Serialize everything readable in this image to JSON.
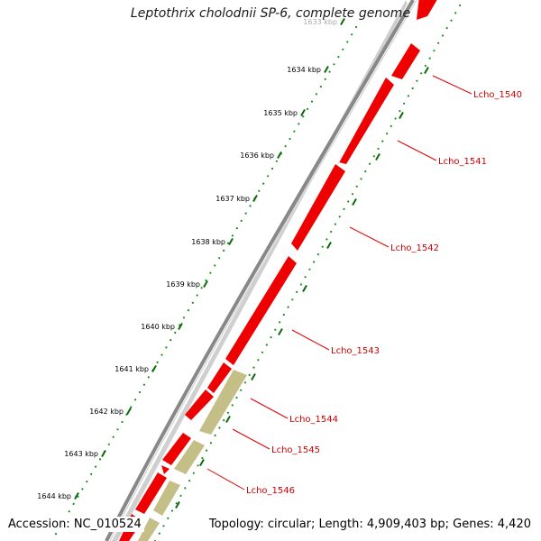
{
  "title": "Leptothrix cholodnii SP-6, complete genome",
  "footer": {
    "accession": "Accession: NC_010524",
    "summary": "Topology: circular; Length: 4,909,403 bp; Genes: 4,420"
  },
  "colors": {
    "backbone": "#8a8a8a",
    "gene_forward": "#ee0000",
    "gene_other": "#c4bf86",
    "tick_dots": "#1a8f1a",
    "label_line": "#e00000"
  },
  "ticks": [
    {
      "label": "1633 kbp"
    },
    {
      "label": "1634 kbp"
    },
    {
      "label": "1635 kbp"
    },
    {
      "label": "1636 kbp"
    },
    {
      "label": "1637 kbp"
    },
    {
      "label": "1638 kbp"
    },
    {
      "label": "1639 kbp"
    },
    {
      "label": "1640 kbp"
    },
    {
      "label": "1641 kbp"
    },
    {
      "label": "1642 kbp"
    },
    {
      "label": "1643 kbp"
    },
    {
      "label": "1644 kbp"
    }
  ],
  "gene_labels": [
    {
      "label": "Lcho_1540"
    },
    {
      "label": "Lcho_1541"
    },
    {
      "label": "Lcho_1542"
    },
    {
      "label": "Lcho_1543"
    },
    {
      "label": "Lcho_1544"
    },
    {
      "label": "Lcho_1545"
    },
    {
      "label": "Lcho_1546"
    }
  ]
}
